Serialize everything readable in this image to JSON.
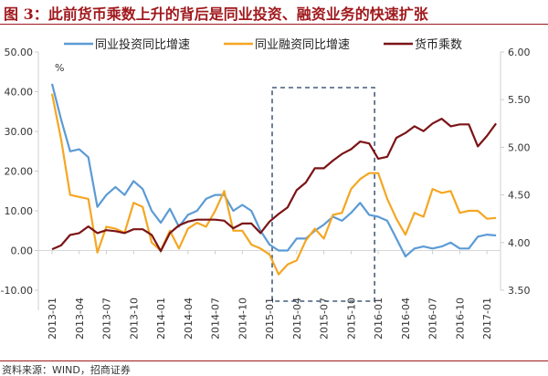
{
  "title": "图 3：此前货币乘数上升的背后是同业投资、融资业务的快速扩张",
  "source": "资料来源：WIND，招商证券",
  "chart_data": {
    "type": "line",
    "unit_label": "%",
    "x": [
      "2013-01",
      "2013-02",
      "2013-03",
      "2013-04",
      "2013-05",
      "2013-06",
      "2013-07",
      "2013-08",
      "2013-09",
      "2013-10",
      "2013-11",
      "2013-12",
      "2014-01",
      "2014-02",
      "2014-03",
      "2014-04",
      "2014-05",
      "2014-06",
      "2014-07",
      "2014-08",
      "2014-09",
      "2014-10",
      "2014-11",
      "2014-12",
      "2015-01",
      "2015-02",
      "2015-03",
      "2015-04",
      "2015-05",
      "2015-06",
      "2015-07",
      "2015-08",
      "2015-09",
      "2015-10",
      "2015-11",
      "2015-12",
      "2016-01",
      "2016-02",
      "2016-03",
      "2016-04",
      "2016-05",
      "2016-06",
      "2016-07",
      "2016-08",
      "2016-09",
      "2016-10",
      "2016-11",
      "2016-12",
      "2017-01",
      "2017-02"
    ],
    "x_tick_labels": [
      "2013-01",
      "2013-04",
      "2013-07",
      "2013-10",
      "2014-01",
      "2014-04",
      "2014-07",
      "2014-10",
      "2015-01",
      "2015-04",
      "2015-07",
      "2015-10",
      "2016-01",
      "2016-04",
      "2016-07",
      "2016-10",
      "2017-01"
    ],
    "y_left": {
      "range": [
        -10,
        50
      ],
      "ticks": [
        "-10.00",
        "0.00",
        "10.00",
        "20.00",
        "30.00",
        "40.00",
        "50.00"
      ]
    },
    "y_right": {
      "range": [
        3.5,
        6.0
      ],
      "ticks": [
        "3.50",
        "4.00",
        "4.50",
        "5.00",
        "5.50",
        "6.00"
      ]
    },
    "legend_position": "top",
    "highlight_range": [
      "2015-02",
      "2016-01"
    ],
    "series": [
      {
        "name": "同业投资同比增速",
        "axis": "left",
        "color": "#5b9bd5",
        "values": [
          42,
          33,
          25,
          25.5,
          23.5,
          11,
          14,
          16,
          14,
          17.5,
          15.5,
          10,
          7,
          10.5,
          6,
          9,
          10,
          13,
          14,
          14,
          10,
          11.5,
          10,
          5,
          1.5,
          0,
          0,
          3,
          3,
          5,
          6.5,
          8.5,
          7.5,
          9.5,
          12,
          9,
          8.5,
          7.5,
          3,
          -1.5,
          0.5,
          1,
          0.5,
          1,
          2,
          0.5,
          0.5,
          3.5,
          4,
          3.8
        ]
      },
      {
        "name": "同业融资同比增速",
        "axis": "left",
        "color": "#f5a623",
        "values": [
          39.5,
          28,
          14,
          13.5,
          13,
          -0.5,
          6,
          5.5,
          4.5,
          12,
          11,
          2,
          0,
          5,
          0.5,
          5.5,
          7,
          6,
          10,
          15,
          5,
          5,
          1.5,
          0.5,
          -1,
          -6,
          -3.5,
          -2.5,
          2.5,
          5.5,
          3,
          9,
          9.5,
          15.5,
          18,
          19.5,
          19.5,
          13,
          8,
          4,
          9.5,
          8.5,
          15.5,
          14.5,
          15,
          9.5,
          10,
          10,
          8,
          8.2
        ]
      },
      {
        "name": "货币乘数",
        "axis": "right",
        "color": "#7b1416",
        "values": [
          3.93,
          3.97,
          4.08,
          4.1,
          4.17,
          4.1,
          4.13,
          4.12,
          4.1,
          4.14,
          4.14,
          4.08,
          3.91,
          4.1,
          4.18,
          4.22,
          4.24,
          4.24,
          4.24,
          4.23,
          4.15,
          4.2,
          4.2,
          4.1,
          4.22,
          4.3,
          4.37,
          4.55,
          4.63,
          4.78,
          4.78,
          4.86,
          4.93,
          4.98,
          5.06,
          5.04,
          4.88,
          4.9,
          5.1,
          5.15,
          5.22,
          5.17,
          5.25,
          5.3,
          5.22,
          5.24,
          5.24,
          5.01,
          5.12,
          5.25
        ]
      }
    ]
  }
}
